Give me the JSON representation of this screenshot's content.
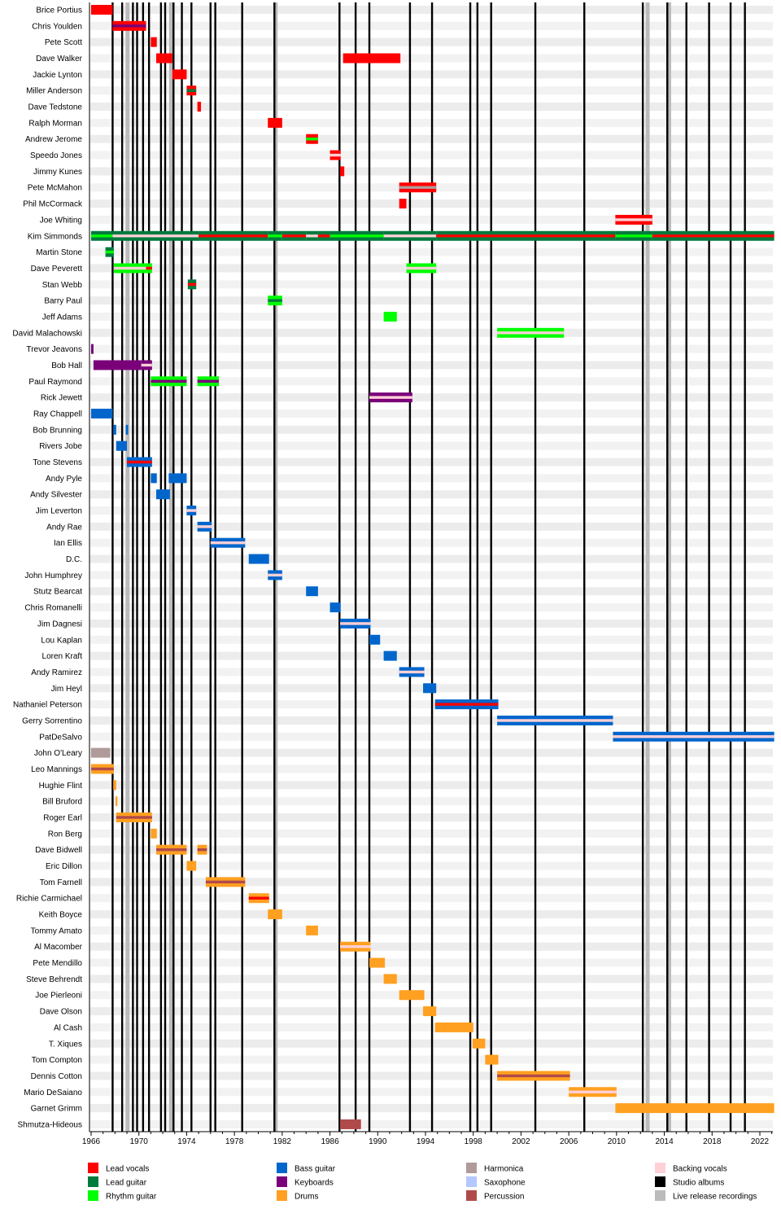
{
  "chart_data": {
    "type": "timeline",
    "xlim": [
      1966,
      2023.2
    ],
    "x_ticks": [
      1966,
      1970,
      1974,
      1978,
      1982,
      1986,
      1990,
      1994,
      1998,
      2002,
      2006,
      2010,
      2014,
      2018,
      2022
    ],
    "grid": "alternating row shading",
    "legend_placement": "bottom",
    "roles": {
      "Lead vocals": "#ff0000",
      "Lead guitar": "#007a3d",
      "Rhythm guitar": "#00ff00",
      "Bass guitar": "#0066cc",
      "Keyboards": "#7a007a",
      "Drums": "#ffa020",
      "Harmonica": "#b09a9a",
      "Saxophone": "#b4c8ff",
      "Percussion": "#b04a4a",
      "Backing vocals": "#ffd0d6",
      "Studio albums": "#000000",
      "Live release recordings": "#bbbbbb"
    },
    "legend": [
      [
        "Lead vocals",
        "Lead guitar",
        "Rhythm guitar"
      ],
      [
        "Bass guitar",
        "Keyboards",
        "Drums"
      ],
      [
        "Harmonica",
        "Saxophone",
        "Percussion"
      ],
      [
        "Backing vocals",
        "Studio albums",
        "Live release recordings"
      ]
    ],
    "studio_albums": [
      1967.8,
      1968.6,
      1969.5,
      1969.85,
      1970.35,
      1970.85,
      1971.85,
      1972.2,
      1972.9,
      1973.6,
      1974.4,
      1976.0,
      1976.4,
      1978.65,
      1981.35,
      1986.8,
      1988.15,
      1989.3,
      1992.7,
      1994.55,
      1997.75,
      1998.35,
      1999.5,
      2003.2,
      2007.3,
      2012.2,
      2014.25,
      2015.85,
      2017.75,
      2019.55,
      2020.75
    ],
    "live_releases": [
      1969.05,
      1972.7,
      1981.45,
      2012.6,
      2014.4
    ],
    "members": [
      {
        "name": "Brice Portius",
        "segments": [
          [
            1966.0,
            1967.8,
            "Lead vocals"
          ]
        ]
      },
      {
        "name": "Chris Youlden",
        "segments": [
          [
            1967.8,
            1970.6,
            "Lead vocals",
            "Keyboards"
          ]
        ]
      },
      {
        "name": "Pete Scott",
        "segments": [
          [
            1971.0,
            1971.5,
            "Lead vocals"
          ]
        ]
      },
      {
        "name": "Dave Walker",
        "segments": [
          [
            1971.45,
            1972.8,
            "Lead vocals"
          ],
          [
            1987.1,
            1991.9,
            "Lead vocals"
          ]
        ]
      },
      {
        "name": "Jackie Lynton",
        "segments": [
          [
            1972.8,
            1974.0,
            "Lead vocals"
          ]
        ]
      },
      {
        "name": "Miller Anderson",
        "segments": [
          [
            1974.0,
            1974.8,
            "Lead vocals",
            "Lead guitar"
          ]
        ]
      },
      {
        "name": "Dave Tedstone",
        "segments": [
          [
            1974.9,
            1975.2,
            "Lead vocals"
          ]
        ]
      },
      {
        "name": "Ralph Morman",
        "segments": [
          [
            1980.8,
            1982.0,
            "Lead vocals"
          ]
        ]
      },
      {
        "name": "Andrew Jerome",
        "segments": [
          [
            1984.0,
            1985.0,
            "Lead vocals",
            "Rhythm guitar"
          ]
        ]
      },
      {
        "name": "Speedo Jones",
        "segments": [
          [
            1986.0,
            1986.9,
            "Lead vocals",
            "Backing vocals"
          ]
        ]
      },
      {
        "name": "Jimmy Kunes",
        "segments": [
          [
            1986.85,
            1987.2,
            "Lead vocals"
          ]
        ]
      },
      {
        "name": "Pete McMahon",
        "segments": [
          [
            1991.8,
            1994.9,
            "Lead vocals",
            "Harmonica"
          ]
        ]
      },
      {
        "name": "Phil McCormack",
        "segments": [
          [
            1991.8,
            1992.4,
            "Lead vocals"
          ]
        ]
      },
      {
        "name": "Joe Whiting",
        "segments": [
          [
            2009.9,
            2013.0,
            "Lead vocals",
            "Backing vocals"
          ]
        ]
      },
      {
        "name": "Kim Simmonds",
        "segments": [
          [
            1966.0,
            1967.8,
            "Lead guitar",
            "Rhythm guitar"
          ],
          [
            1967.8,
            1975.0,
            "Lead guitar",
            "Backing vocals"
          ],
          [
            1975.0,
            1980.8,
            "Lead guitar",
            "Lead vocals"
          ],
          [
            1980.8,
            1982.0,
            "Lead guitar",
            "Rhythm guitar"
          ],
          [
            1982.0,
            1984.0,
            "Lead guitar",
            "Lead vocals"
          ],
          [
            1984.0,
            1985.0,
            "Lead guitar",
            "Backing vocals"
          ],
          [
            1985.0,
            1986.0,
            "Lead guitar",
            "Lead vocals"
          ],
          [
            1986.0,
            1990.5,
            "Lead guitar",
            "Rhythm guitar"
          ],
          [
            1990.5,
            1994.9,
            "Lead guitar",
            "Backing vocals"
          ],
          [
            1994.9,
            2009.9,
            "Lead guitar",
            "Lead vocals"
          ],
          [
            2009.9,
            2013.0,
            "Lead guitar",
            "Rhythm guitar"
          ],
          [
            2013.0,
            2023.2,
            "Lead guitar",
            "Lead vocals"
          ]
        ]
      },
      {
        "name": "Martin Stone",
        "segments": [
          [
            1967.2,
            1967.9,
            "Lead guitar",
            "Rhythm guitar"
          ]
        ]
      },
      {
        "name": "Dave Peverett",
        "segments": [
          [
            1967.9,
            1970.6,
            "Rhythm guitar",
            "Backing vocals"
          ],
          [
            1970.6,
            1971.1,
            "Rhythm guitar",
            "Lead vocals"
          ],
          [
            1992.4,
            1994.9,
            "Rhythm guitar",
            "Backing vocals"
          ]
        ]
      },
      {
        "name": "Stan Webb",
        "segments": [
          [
            1974.1,
            1974.8,
            "Lead guitar",
            "Lead vocals"
          ]
        ]
      },
      {
        "name": "Barry Paul",
        "segments": [
          [
            1980.8,
            1982.0,
            "Rhythm guitar",
            "Lead guitar"
          ]
        ]
      },
      {
        "name": "Jeff Adams",
        "segments": [
          [
            1990.5,
            1991.6,
            "Rhythm guitar"
          ]
        ]
      },
      {
        "name": "David Malachowski",
        "segments": [
          [
            2000.0,
            2005.6,
            "Rhythm guitar",
            "Backing vocals"
          ]
        ]
      },
      {
        "name": "Trevor Jeavons",
        "segments": [
          [
            1966.0,
            1966.2,
            "Keyboards"
          ]
        ]
      },
      {
        "name": "Bob Hall",
        "segments": [
          [
            1966.2,
            1970.2,
            "Keyboards"
          ],
          [
            1970.2,
            1971.1,
            "Keyboards",
            "Backing vocals"
          ]
        ]
      },
      {
        "name": "Paul Raymond",
        "segments": [
          [
            1971.0,
            1974.0,
            "Rhythm guitar",
            "Keyboards"
          ],
          [
            1974.9,
            1976.7,
            "Rhythm guitar",
            "Keyboards"
          ]
        ]
      },
      {
        "name": "Rick Jewett",
        "segments": [
          [
            1989.3,
            1992.9,
            "Keyboards",
            "Backing vocals"
          ]
        ]
      },
      {
        "name": "Ray Chappell",
        "segments": [
          [
            1966.0,
            1967.8,
            "Bass guitar"
          ]
        ]
      },
      {
        "name": "Bob Brunning",
        "segments": [
          [
            1967.85,
            1968.1,
            "Bass guitar"
          ],
          [
            1968.9,
            1969.1,
            "Bass guitar"
          ]
        ]
      },
      {
        "name": "Rivers Jobe",
        "segments": [
          [
            1968.1,
            1969.0,
            "Bass guitar"
          ]
        ]
      },
      {
        "name": "Tone Stevens",
        "segments": [
          [
            1969.0,
            1971.1,
            "Bass guitar",
            "Lead vocals"
          ]
        ]
      },
      {
        "name": "Andy Pyle",
        "segments": [
          [
            1971.0,
            1971.5,
            "Bass guitar"
          ],
          [
            1972.5,
            1974.0,
            "Bass guitar"
          ]
        ]
      },
      {
        "name": "Andy Silvester",
        "segments": [
          [
            1971.45,
            1972.6,
            "Bass guitar"
          ]
        ]
      },
      {
        "name": "Jim Leverton",
        "segments": [
          [
            1974.0,
            1974.8,
            "Bass guitar",
            "Backing vocals"
          ]
        ]
      },
      {
        "name": "Andy Rae",
        "segments": [
          [
            1974.9,
            1976.1,
            "Bass guitar",
            "Backing vocals"
          ]
        ]
      },
      {
        "name": "Ian Ellis",
        "segments": [
          [
            1976.0,
            1978.9,
            "Bass guitar",
            "Backing vocals"
          ]
        ]
      },
      {
        "name": "D.C.",
        "segments": [
          [
            1979.2,
            1980.9,
            "Bass guitar"
          ]
        ]
      },
      {
        "name": "John Humphrey",
        "segments": [
          [
            1980.8,
            1982.0,
            "Bass guitar",
            "Backing vocals"
          ]
        ]
      },
      {
        "name": "Stutz Bearcat",
        "segments": [
          [
            1984.0,
            1985.0,
            "Bass guitar"
          ]
        ]
      },
      {
        "name": "Chris Romanelli",
        "segments": [
          [
            1986.0,
            1986.9,
            "Bass guitar"
          ]
        ]
      },
      {
        "name": "Jim Dagnesi",
        "segments": [
          [
            1986.85,
            1989.4,
            "Bass guitar",
            "Backing vocals"
          ]
        ]
      },
      {
        "name": "Lou Kaplan",
        "segments": [
          [
            1989.3,
            1990.2,
            "Bass guitar"
          ]
        ]
      },
      {
        "name": "Loren Kraft",
        "segments": [
          [
            1990.5,
            1991.6,
            "Bass guitar"
          ]
        ]
      },
      {
        "name": "Andy Ramirez",
        "segments": [
          [
            1991.8,
            1993.9,
            "Bass guitar",
            "Backing vocals"
          ]
        ]
      },
      {
        "name": "Jim Heyl",
        "segments": [
          [
            1993.8,
            1994.9,
            "Bass guitar"
          ]
        ]
      },
      {
        "name": "Nathaniel Peterson",
        "segments": [
          [
            1994.8,
            2000.1,
            "Bass guitar",
            "Lead vocals"
          ]
        ]
      },
      {
        "name": "Gerry Sorrentino",
        "segments": [
          [
            2000.0,
            2009.7,
            "Bass guitar",
            "Backing vocals"
          ]
        ]
      },
      {
        "name": "PatDeSalvo",
        "segments": [
          [
            2009.7,
            2023.2,
            "Bass guitar",
            "Backing vocals"
          ]
        ]
      },
      {
        "name": "John O'Leary",
        "segments": [
          [
            1966.0,
            1967.6,
            "Harmonica"
          ]
        ]
      },
      {
        "name": "Leo Mannings",
        "segments": [
          [
            1966.0,
            1967.9,
            "Drums",
            "Percussion"
          ]
        ]
      },
      {
        "name": "Hughie Flint",
        "segments": [
          [
            1967.85,
            1968.1,
            "Drums"
          ]
        ]
      },
      {
        "name": "Bill Bruford",
        "segments": [
          [
            1968.05,
            1968.2,
            "Drums"
          ]
        ]
      },
      {
        "name": "Roger Earl",
        "segments": [
          [
            1968.1,
            1971.1,
            "Drums",
            "Percussion"
          ]
        ]
      },
      {
        "name": "Ron Berg",
        "segments": [
          [
            1971.0,
            1971.5,
            "Drums"
          ]
        ]
      },
      {
        "name": "Dave Bidwell",
        "segments": [
          [
            1971.45,
            1974.0,
            "Drums",
            "Percussion"
          ],
          [
            1974.9,
            1975.7,
            "Drums",
            "Percussion"
          ]
        ]
      },
      {
        "name": "Eric Dillon",
        "segments": [
          [
            1974.0,
            1974.8,
            "Drums"
          ]
        ]
      },
      {
        "name": "Tom Farnell",
        "segments": [
          [
            1975.6,
            1978.9,
            "Drums",
            "Percussion"
          ]
        ]
      },
      {
        "name": "Richie Carmichael",
        "segments": [
          [
            1979.2,
            1980.9,
            "Drums",
            "Lead vocals"
          ]
        ]
      },
      {
        "name": "Keith Boyce",
        "segments": [
          [
            1980.8,
            1982.0,
            "Drums"
          ]
        ]
      },
      {
        "name": "Tommy Amato",
        "segments": [
          [
            1984.0,
            1985.0,
            "Drums"
          ]
        ]
      },
      {
        "name": "Al Macomber",
        "segments": [
          [
            1986.85,
            1989.4,
            "Drums",
            "Backing vocals"
          ]
        ]
      },
      {
        "name": "Pete Mendillo",
        "segments": [
          [
            1989.3,
            1990.6,
            "Drums"
          ]
        ]
      },
      {
        "name": "Steve Behrendt",
        "segments": [
          [
            1990.5,
            1991.6,
            "Drums"
          ]
        ]
      },
      {
        "name": "Joe Pierleoni",
        "segments": [
          [
            1991.8,
            1993.9,
            "Drums"
          ]
        ]
      },
      {
        "name": "Dave Olson",
        "segments": [
          [
            1993.8,
            1994.9,
            "Drums"
          ]
        ]
      },
      {
        "name": "Al Cash",
        "segments": [
          [
            1994.8,
            1998.0,
            "Drums"
          ]
        ]
      },
      {
        "name": "T. Xiques",
        "segments": [
          [
            1997.95,
            1999.0,
            "Drums"
          ]
        ]
      },
      {
        "name": "Tom Compton",
        "segments": [
          [
            1999.0,
            2000.1,
            "Drums"
          ]
        ]
      },
      {
        "name": "Dennis Cotton",
        "segments": [
          [
            2000.0,
            2006.1,
            "Drums",
            "Percussion"
          ]
        ]
      },
      {
        "name": "Mario DeSaiano",
        "segments": [
          [
            2006.0,
            2010.0,
            "Drums",
            "Backing vocals"
          ]
        ]
      },
      {
        "name": "Garnet Grimm",
        "segments": [
          [
            2009.9,
            2023.2,
            "Drums"
          ]
        ]
      },
      {
        "name": "Shmutza-Hideous",
        "segments": [
          [
            1986.85,
            1988.6,
            "Percussion"
          ]
        ]
      }
    ]
  }
}
